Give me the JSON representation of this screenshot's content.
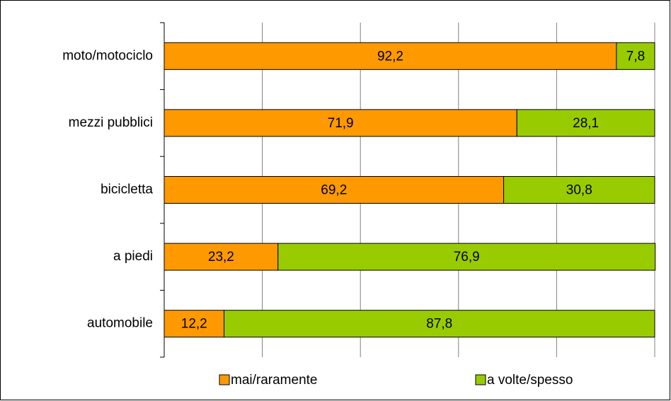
{
  "chart_data": {
    "type": "stacked-bar-horizontal",
    "categories": [
      "moto/motociclo",
      "mezzi pubblici",
      "bicicletta",
      "a piedi",
      "automobile"
    ],
    "series": [
      {
        "name": "mai/raramente",
        "color": "#ff9900",
        "values": [
          92.2,
          71.9,
          69.2,
          23.2,
          12.2
        ],
        "value_labels": [
          "92,2",
          "71,9",
          "69,2",
          "23,2",
          "12,2"
        ]
      },
      {
        "name": "a volte/spesso",
        "color": "#99cc00",
        "values": [
          7.8,
          28.1,
          30.8,
          76.9,
          87.8
        ],
        "value_labels": [
          "7,8",
          "28,1",
          "30,8",
          "76,9",
          "87,8"
        ]
      }
    ],
    "xlim": [
      0,
      100
    ],
    "xticks": [
      0,
      20,
      40,
      60,
      80,
      100
    ],
    "grid": true,
    "legend": "bottom"
  }
}
